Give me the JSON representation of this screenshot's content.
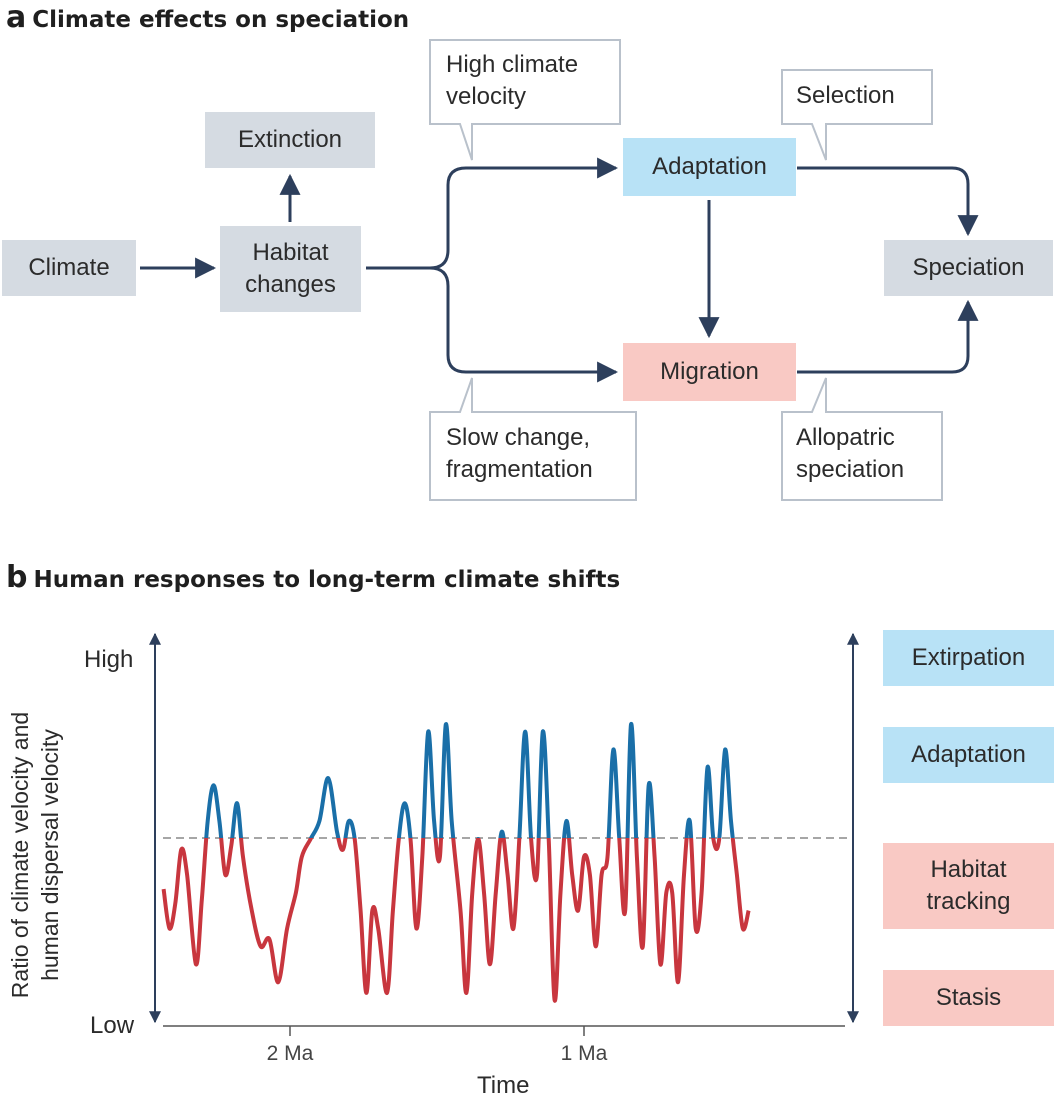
{
  "panel_a": {
    "letter": "a",
    "title": "Climate effects on speciation",
    "boxes": {
      "climate": "Climate",
      "habitat": "Habitat\nchanges",
      "extinction": "Extinction",
      "adaptation": "Adaptation",
      "migration": "Migration",
      "speciation": "Speciation"
    },
    "callouts": {
      "high_velocity": "High climate\nvelocity",
      "selection": "Selection",
      "slow_change": "Slow change,\nfragmentation",
      "allopatric": "Allopatric\nspeciation"
    }
  },
  "panel_b": {
    "letter": "b",
    "title": "Human responses to long-term climate shifts",
    "ylabel": "Ratio of climate velocity and\nhuman dispersal velocity",
    "y_high": "High",
    "y_low": "Low",
    "xlabel": "Time",
    "ticks": [
      "2 Ma",
      "1 Ma"
    ],
    "responses": {
      "extirpation": "Extirpation",
      "adaptation": "Adaptation",
      "habitat_tracking": "Habitat\ntracking",
      "stasis": "Stasis"
    }
  },
  "colors": {
    "arrow": "#2d3f5c",
    "above_threshold": "#1a6fa8",
    "below_threshold": "#c8363e",
    "threshold": "#999999",
    "callout_border": "#b9c1cb"
  },
  "chart_data": {
    "type": "line",
    "xlabel": "Time",
    "ylabel": "Ratio of climate velocity and human dispersal velocity",
    "x_ticks": [
      "2 Ma",
      "1 Ma"
    ],
    "y_ticks": [
      "Low",
      "High"
    ],
    "threshold": 0.5,
    "series": [
      {
        "color_above": "#1a6fa8",
        "color_below": "#c8363e",
        "points": [
          [
            2.43,
            0.36
          ],
          [
            2.41,
            0.25
          ],
          [
            2.39,
            0.32
          ],
          [
            2.37,
            0.47
          ],
          [
            2.35,
            0.4
          ],
          [
            2.32,
            0.15
          ],
          [
            2.3,
            0.33
          ],
          [
            2.28,
            0.55
          ],
          [
            2.26,
            0.65
          ],
          [
            2.24,
            0.55
          ],
          [
            2.22,
            0.4
          ],
          [
            2.2,
            0.48
          ],
          [
            2.18,
            0.6
          ],
          [
            2.16,
            0.45
          ],
          [
            2.13,
            0.3
          ],
          [
            2.1,
            0.2
          ],
          [
            2.07,
            0.22
          ],
          [
            2.04,
            0.1
          ],
          [
            2.01,
            0.25
          ],
          [
            1.98,
            0.35
          ],
          [
            1.96,
            0.45
          ],
          [
            1.93,
            0.5
          ],
          [
            1.9,
            0.55
          ],
          [
            1.87,
            0.67
          ],
          [
            1.84,
            0.52
          ],
          [
            1.82,
            0.47
          ],
          [
            1.8,
            0.55
          ],
          [
            1.78,
            0.5
          ],
          [
            1.76,
            0.3
          ],
          [
            1.74,
            0.07
          ],
          [
            1.72,
            0.3
          ],
          [
            1.7,
            0.25
          ],
          [
            1.67,
            0.07
          ],
          [
            1.65,
            0.3
          ],
          [
            1.63,
            0.5
          ],
          [
            1.61,
            0.6
          ],
          [
            1.59,
            0.5
          ],
          [
            1.57,
            0.25
          ],
          [
            1.55,
            0.45
          ],
          [
            1.53,
            0.8
          ],
          [
            1.51,
            0.55
          ],
          [
            1.49,
            0.45
          ],
          [
            1.47,
            0.82
          ],
          [
            1.45,
            0.55
          ],
          [
            1.42,
            0.3
          ],
          [
            1.4,
            0.07
          ],
          [
            1.38,
            0.35
          ],
          [
            1.36,
            0.5
          ],
          [
            1.34,
            0.35
          ],
          [
            1.32,
            0.15
          ],
          [
            1.3,
            0.35
          ],
          [
            1.28,
            0.52
          ],
          [
            1.26,
            0.4
          ],
          [
            1.24,
            0.25
          ],
          [
            1.22,
            0.5
          ],
          [
            1.2,
            0.8
          ],
          [
            1.18,
            0.5
          ],
          [
            1.16,
            0.4
          ],
          [
            1.14,
            0.8
          ],
          [
            1.12,
            0.5
          ],
          [
            1.1,
            0.05
          ],
          [
            1.08,
            0.35
          ],
          [
            1.06,
            0.55
          ],
          [
            1.04,
            0.4
          ],
          [
            1.02,
            0.3
          ],
          [
            1.0,
            0.45
          ],
          [
            0.98,
            0.4
          ],
          [
            0.96,
            0.2
          ],
          [
            0.94,
            0.4
          ],
          [
            0.92,
            0.45
          ],
          [
            0.9,
            0.75
          ],
          [
            0.88,
            0.5
          ],
          [
            0.86,
            0.3
          ],
          [
            0.84,
            0.82
          ],
          [
            0.82,
            0.45
          ],
          [
            0.8,
            0.2
          ],
          [
            0.78,
            0.65
          ],
          [
            0.76,
            0.45
          ],
          [
            0.74,
            0.15
          ],
          [
            0.72,
            0.35
          ],
          [
            0.7,
            0.35
          ],
          [
            0.68,
            0.1
          ],
          [
            0.66,
            0.4
          ],
          [
            0.64,
            0.55
          ],
          [
            0.62,
            0.25
          ],
          [
            0.6,
            0.35
          ],
          [
            0.58,
            0.7
          ],
          [
            0.56,
            0.5
          ],
          [
            0.54,
            0.5
          ],
          [
            0.52,
            0.75
          ],
          [
            0.5,
            0.55
          ],
          [
            0.48,
            0.4
          ],
          [
            0.46,
            0.25
          ],
          [
            0.44,
            0.3
          ]
        ]
      }
    ]
  }
}
